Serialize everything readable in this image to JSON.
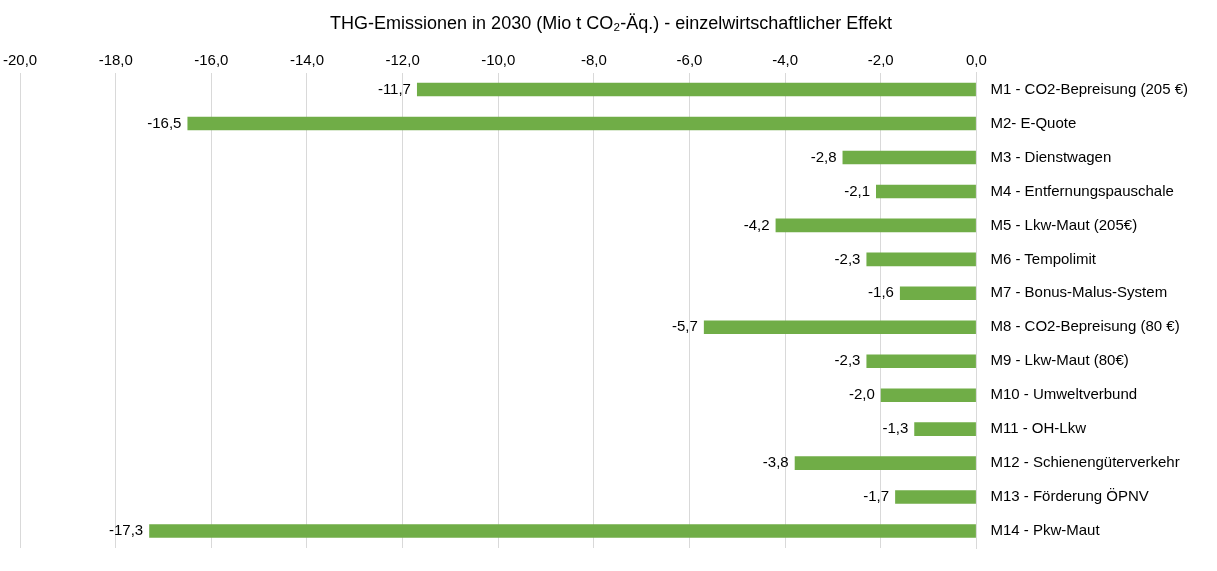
{
  "chart_data": {
    "type": "bar",
    "orientation": "horizontal",
    "title": "THG-Emissionen in 2030 (Mio t CO₂-Äq.) - einzelwirtschaftlicher Effekt",
    "categories": [
      "M1 - CO2-Bepreisung (205 €)",
      "M2- E-Quote",
      "M3 - Dienstwagen",
      "M4 - Entfernungspauschale",
      "M5 - Lkw-Maut (205€)",
      "M6 - Tempolimit",
      "M7 - Bonus-Malus-System",
      "M8 - CO2-Bepreisung (80 €)",
      "M9 - Lkw-Maut (80€)",
      "M10 - Umweltverbund",
      "M11 - OH-Lkw",
      "M12 - Schienengüterverkehr",
      "M13 - Förderung ÖPNV",
      "M14 - Pkw-Maut"
    ],
    "values": [
      -11.7,
      -16.5,
      -2.8,
      -2.1,
      -4.2,
      -2.3,
      -1.6,
      -5.7,
      -2.3,
      -2.0,
      -1.3,
      -3.8,
      -1.7,
      -17.3
    ],
    "value_labels": [
      "-11,7",
      "-16,5",
      "-2,8",
      "-2,1",
      "-4,2",
      "-2,3",
      "-1,6",
      "-5,7",
      "-2,3",
      "-2,0",
      "-1,3",
      "-3,8",
      "-1,7",
      "-17,3"
    ],
    "color": "#70ad47",
    "xlim": [
      -20,
      0
    ],
    "xticks": [
      {
        "value": -20,
        "label": "-20,0"
      },
      {
        "value": -18,
        "label": "-18,0"
      },
      {
        "value": -16,
        "label": "-16,0"
      },
      {
        "value": -14,
        "label": "-14,0"
      },
      {
        "value": -12,
        "label": "-12,0"
      },
      {
        "value": -10,
        "label": "-10,0"
      },
      {
        "value": -8,
        "label": "-8,0"
      },
      {
        "value": -6,
        "label": "-6,0"
      },
      {
        "value": -4,
        "label": "-4,0"
      },
      {
        "value": -2,
        "label": "-2,0"
      },
      {
        "value": 0,
        "label": "0,0"
      }
    ],
    "grid": "x",
    "legend": false
  }
}
